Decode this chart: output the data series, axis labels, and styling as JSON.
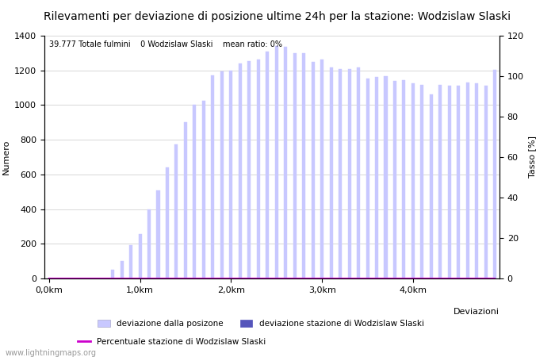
{
  "title": "Rilevamenti per deviazione di posizione ultime 24h per la stazione: Wodzislaw Slaski",
  "subtitle": "39.777 Totale fulmini    0 Wodzislaw Slaski    mean ratio: 0%",
  "xlabel": "Deviazioni",
  "ylabel_left": "Numero",
  "ylabel_right": "Tasso [%]",
  "watermark": "www.lightningmaps.org",
  "bar_values": [
    0,
    0,
    0,
    0,
    0,
    0,
    0,
    50,
    100,
    190,
    255,
    400,
    510,
    640,
    775,
    900,
    1000,
    1025,
    1170,
    1195,
    1200,
    1240,
    1255,
    1265,
    1310,
    1340,
    1335,
    1300,
    1300,
    1250,
    1265,
    1215,
    1210,
    1210,
    1215,
    1155,
    1160,
    1165,
    1140,
    1145,
    1125,
    1115,
    1060,
    1115,
    1110,
    1110,
    1130,
    1125,
    1110,
    1205
  ],
  "station_bar_values": [
    0,
    0,
    0,
    0,
    0,
    0,
    0,
    0,
    0,
    0,
    0,
    0,
    0,
    0,
    0,
    0,
    0,
    0,
    0,
    0,
    0,
    0,
    0,
    0,
    0,
    0,
    0,
    0,
    0,
    0,
    0,
    0,
    0,
    0,
    0,
    0,
    0,
    0,
    0,
    0,
    0,
    0,
    0,
    0,
    0,
    0,
    0,
    0,
    0,
    0
  ],
  "ratio_values": [
    0,
    0,
    0,
    0,
    0,
    0,
    0,
    0,
    0,
    0,
    0,
    0,
    0,
    0,
    0,
    0,
    0,
    0,
    0,
    0,
    0,
    0,
    0,
    0,
    0,
    0,
    0,
    0,
    0,
    0,
    0,
    0,
    0,
    0,
    0,
    0,
    0,
    0,
    0,
    0,
    0,
    0,
    0,
    0,
    0,
    0,
    0,
    0,
    0,
    0
  ],
  "x_tick_positions": [
    0,
    10,
    20,
    30,
    40
  ],
  "x_tick_labels": [
    "0,0km",
    "1,0km",
    "2,0km",
    "3,0km",
    "4,0km"
  ],
  "ylim_left": [
    0,
    1400
  ],
  "ylim_right": [
    0,
    120
  ],
  "yticks_left": [
    0,
    200,
    400,
    600,
    800,
    1000,
    1200,
    1400
  ],
  "yticks_right": [
    0,
    20,
    40,
    60,
    80,
    100,
    120
  ],
  "bar_color_light": "#c8c8ff",
  "bar_color_dark": "#5555bb",
  "line_color": "#cc00cc",
  "background_color": "#ffffff",
  "grid_color": "#c8c8c8",
  "title_fontsize": 10,
  "axis_fontsize": 8,
  "tick_fontsize": 8,
  "bar_width": 0.35
}
